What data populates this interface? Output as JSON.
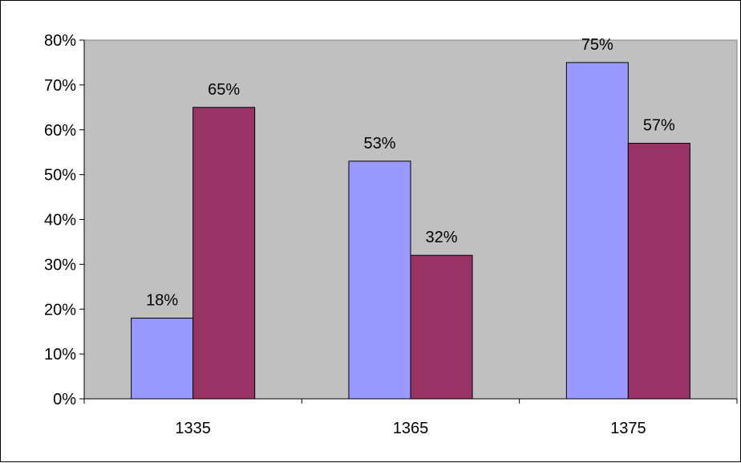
{
  "chart_data": {
    "type": "bar",
    "categories": [
      "1335",
      "1365",
      "1375"
    ],
    "series": [
      {
        "values": [
          18,
          53,
          75
        ],
        "labels": [
          "18%",
          "53%",
          "75%"
        ],
        "color": "#9999FF"
      },
      {
        "values": [
          65,
          32,
          57
        ],
        "labels": [
          "65%",
          "32%",
          "57%"
        ],
        "color": "#993366"
      }
    ],
    "y_ticks": [
      "0%",
      "10%",
      "20%",
      "30%",
      "40%",
      "50%",
      "60%",
      "70%",
      "80%"
    ],
    "ylim": [
      0,
      80
    ],
    "title": "",
    "xlabel": "",
    "ylabel": "",
    "grid": false,
    "plot_background": "#C0C0C0",
    "legend": "none"
  }
}
